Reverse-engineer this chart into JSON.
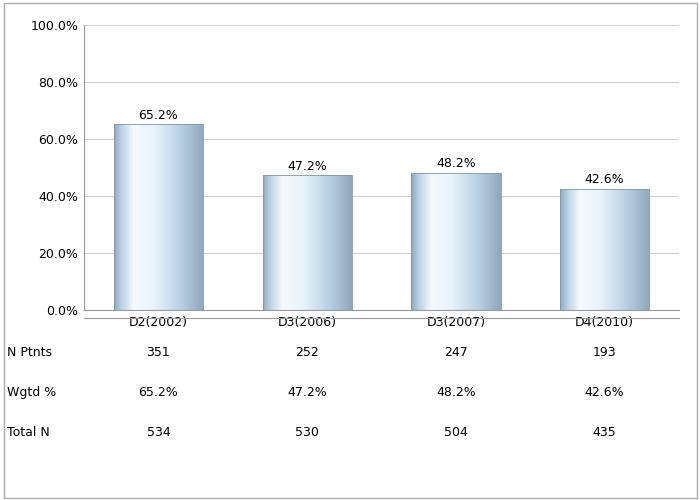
{
  "categories": [
    "D2(2002)",
    "D3(2006)",
    "D3(2007)",
    "D4(2010)"
  ],
  "values": [
    65.2,
    47.2,
    48.2,
    42.6
  ],
  "labels": [
    "65.2%",
    "47.2%",
    "48.2%",
    "42.6%"
  ],
  "table_rows": [
    {
      "label": "N Ptnts",
      "values": [
        "351",
        "252",
        "247",
        "193"
      ]
    },
    {
      "label": "Wgtd %",
      "values": [
        "65.2%",
        "47.2%",
        "48.2%",
        "42.6%"
      ]
    },
    {
      "label": "Total N",
      "values": [
        "534",
        "530",
        "504",
        "435"
      ]
    }
  ],
  "ylim": [
    0,
    100
  ],
  "yticks": [
    0,
    20,
    40,
    60,
    80,
    100
  ],
  "ytick_labels": [
    "0.0%",
    "20.0%",
    "40.0%",
    "60.0%",
    "80.0%",
    "100.0%"
  ],
  "bar_color_dark": "#8fa8bc",
  "bar_color_light": "#daeaf5",
  "bar_color_highlight": "#eef5fb",
  "background_color": "#ffffff",
  "grid_color": "#d0d0d0",
  "bar_width": 0.6,
  "font_size_labels": 9,
  "font_size_table": 9,
  "font_size_ticks": 9,
  "figure_width": 7.0,
  "figure_height": 5.0,
  "dpi": 100
}
